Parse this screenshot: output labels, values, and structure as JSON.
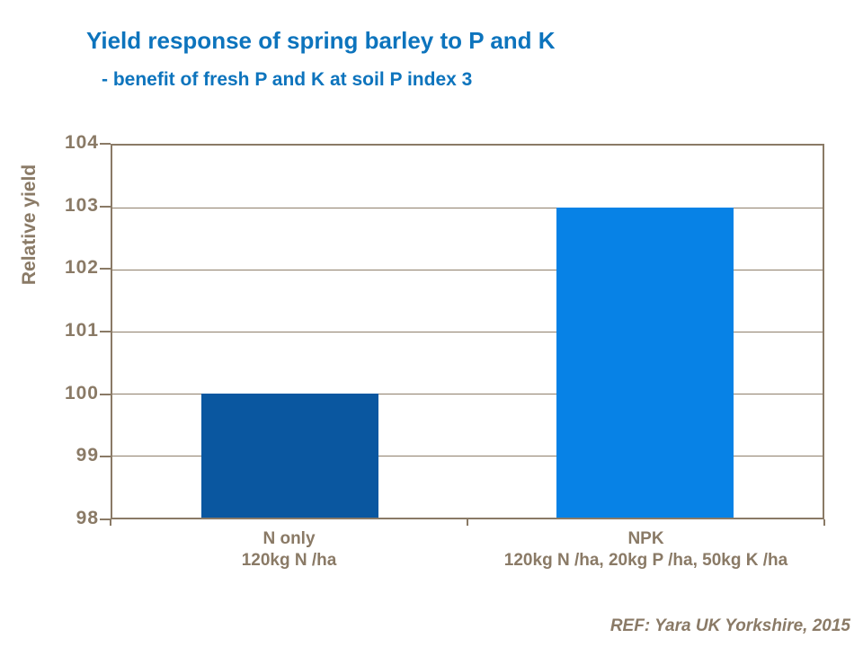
{
  "chart_data": {
    "type": "bar",
    "title": "Yield response of spring barley to P and K",
    "subtitle": "- benefit of fresh P and K at soil P index 3",
    "categories": [
      "N only",
      "NPK"
    ],
    "category_sublabels": [
      "120kg N /ha",
      "120kg N /ha, 20kg P /ha, 50kg K /ha"
    ],
    "values": [
      100,
      103
    ],
    "bar_colors": [
      "#0a57a0",
      "#0782e6"
    ],
    "xlabel": "",
    "ylabel": "Relative yield",
    "ylim": [
      98,
      104
    ],
    "yticks": [
      98,
      99,
      100,
      101,
      102,
      103,
      104
    ],
    "grid": true,
    "legend": false,
    "footer": "REF: Yara UK Yorkshire, 2015",
    "colors": {
      "title_text": "#0d74bd",
      "axis_text": "#8a7a66",
      "plot_border": "#8a7a66",
      "gridline": "#8f7f6b",
      "background": "#ffffff"
    }
  }
}
